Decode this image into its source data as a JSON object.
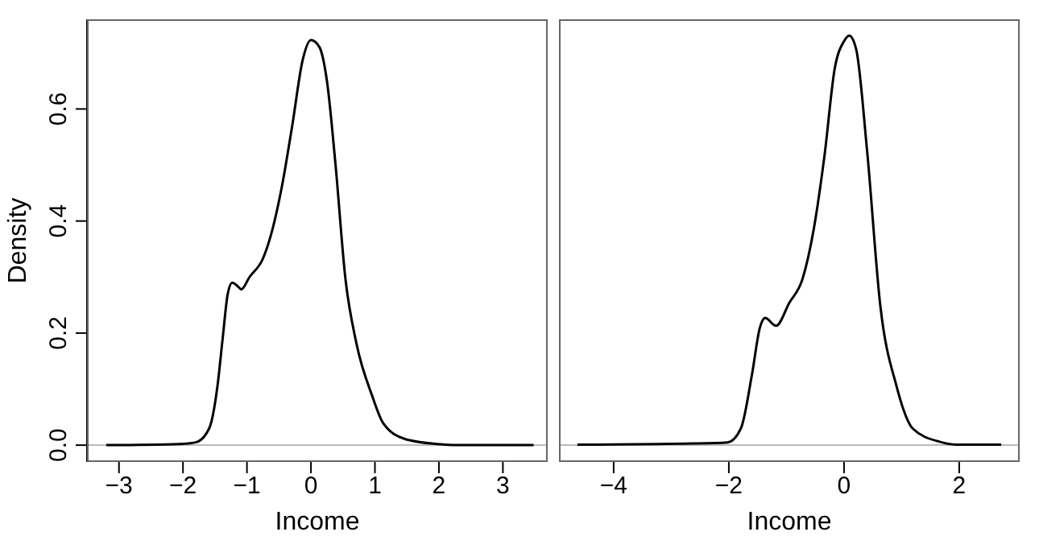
{
  "chart_data": [
    {
      "type": "line",
      "xlabel": "Income",
      "ylabel": "Density",
      "xlim": [
        -3.5,
        3.7
      ],
      "ylim": [
        -0.03,
        0.76
      ],
      "xticks": [
        -3,
        -2,
        -1,
        0,
        1,
        2,
        3
      ],
      "yticks": [
        {
          "value": 0,
          "label": "0.0"
        },
        {
          "value": 0.2,
          "label": "0.2"
        },
        {
          "value": 0.4,
          "label": "0.4"
        },
        {
          "value": 0.6,
          "label": "0.6"
        }
      ],
      "marker": "none",
      "line_style": "solid",
      "ref_lines": [
        {
          "axis": "y",
          "value": 0,
          "color": "#bbbbbb"
        }
      ],
      "series": [
        {
          "color": "#000000",
          "x": [
            -3.2,
            -2.05,
            -1.8,
            -1.59,
            -1.46,
            -1.38,
            -1.3,
            -1.23,
            -1.13,
            -1.09,
            -0.96,
            -0.75,
            -0.63,
            -0.46,
            -0.29,
            -0.13,
            0,
            0.13,
            0.25,
            0.38,
            0.54,
            0.71,
            0.96,
            1.13,
            1.47,
            1.97,
            2.3,
            3.48
          ],
          "values": [
            0,
            0.002,
            0.005,
            0.03,
            0.106,
            0.19,
            0.27,
            0.29,
            0.282,
            0.278,
            0.3,
            0.333,
            0.373,
            0.458,
            0.572,
            0.687,
            0.723,
            0.711,
            0.65,
            0.506,
            0.296,
            0.182,
            0.087,
            0.039,
            0.011,
            0.002,
            0,
            0
          ]
        }
      ]
    },
    {
      "type": "line",
      "xlabel": "Income",
      "xlim": [
        -4.95,
        3.05
      ],
      "ylim": [
        -0.03,
        0.76
      ],
      "xticks": [
        -4,
        -2,
        0,
        2
      ],
      "tick_labels": "x",
      "marker": "none",
      "line_style": "solid",
      "ref_lines": [
        {
          "axis": "y",
          "value": 0,
          "color": "#bbbbbb"
        }
      ],
      "series": [
        {
          "color": "#000000",
          "x": [
            -4.63,
            -2.63,
            -2.02,
            -1.79,
            -1.6,
            -1.46,
            -1.37,
            -1.18,
            -0.95,
            -0.72,
            -0.53,
            -0.34,
            -0.16,
            0,
            0.09,
            0.21,
            0.4,
            0.63,
            0.91,
            1.19,
            1.66,
            1.94,
            2.73
          ],
          "values": [
            0.001,
            0.003,
            0.005,
            0.03,
            0.125,
            0.21,
            0.227,
            0.213,
            0.254,
            0.297,
            0.383,
            0.516,
            0.673,
            0.721,
            0.731,
            0.707,
            0.526,
            0.249,
            0.106,
            0.03,
            0.006,
            0.001,
            0.001
          ]
        }
      ]
    }
  ]
}
